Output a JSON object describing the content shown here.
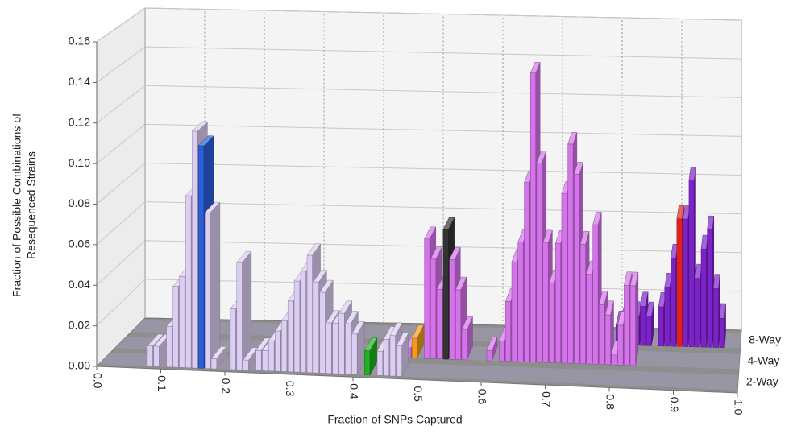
{
  "chart_data": {
    "type": "bar3d",
    "ylabel": [
      "Fraction of Possible Combinations of",
      "Resequenced Strains"
    ],
    "xlabel": "Fraction of SNPs Captured",
    "xlim": [
      0,
      1
    ],
    "xticks": [
      {
        "value": 0,
        "label": "0.0"
      },
      0.1,
      0.2,
      0.3,
      0.4,
      0.5,
      0.6,
      0.7,
      0.8,
      0.9,
      {
        "value": 1,
        "label": "1.0"
      }
    ],
    "ylim": [
      0,
      0.16
    ],
    "yticks": [
      {
        "value": 0,
        "label": "0.00"
      },
      0.02,
      0.04,
      0.06,
      0.08,
      {
        "value": 0.1,
        "label": "0.10"
      },
      0.12,
      0.14,
      0.16
    ],
    "grid": true,
    "series": [
      {
        "name": "2-Way",
        "color": "#dccdf2",
        "x": [
          0.08,
          0.09,
          0.11,
          0.12,
          0.13,
          0.14,
          0.15,
          0.16,
          0.17,
          0.18,
          0.21,
          0.22,
          0.23,
          0.25,
          0.26,
          0.27,
          0.28,
          0.29,
          0.3,
          0.31,
          0.32,
          0.33,
          0.34,
          0.35,
          0.36,
          0.37,
          0.38,
          0.39,
          0.4,
          0.42,
          0.44,
          0.45,
          0.46,
          0.47
        ],
        "values": [
          0.01,
          0.01,
          0.02,
          0.04,
          0.045,
          0.085,
          0.117,
          0.11,
          0.077,
          0.005,
          0.03,
          0.053,
          0.005,
          0.01,
          0.01,
          0.015,
          0.02,
          0.025,
          0.035,
          0.045,
          0.05,
          0.058,
          0.045,
          0.04,
          0.025,
          0.025,
          0.03,
          0.025,
          0.02,
          0.012,
          0.012,
          0.018,
          0.02,
          0.015
        ],
        "colors": [
          null,
          null,
          null,
          null,
          null,
          null,
          null,
          "#2b5fd9",
          null,
          null,
          null,
          null,
          null,
          null,
          null,
          null,
          null,
          null,
          null,
          null,
          null,
          null,
          null,
          null,
          null,
          null,
          null,
          null,
          null,
          "#22b022",
          null,
          null,
          null,
          null
        ]
      },
      {
        "name": "4-Way",
        "color": "#d473ea",
        "x": [
          0.47,
          0.48,
          0.5,
          0.51,
          0.52,
          0.53,
          0.54,
          0.55,
          0.56,
          0.6,
          0.62,
          0.63,
          0.64,
          0.65,
          0.66,
          0.67,
          0.68,
          0.69,
          0.7,
          0.71,
          0.72,
          0.73,
          0.74,
          0.75,
          0.76,
          0.77,
          0.78,
          0.79,
          0.8,
          0.81,
          0.82,
          0.83
        ],
        "values": [
          0.005,
          0.01,
          0.06,
          0.05,
          0.035,
          0.065,
          0.05,
          0.035,
          0.015,
          0.005,
          0.01,
          0.03,
          0.05,
          0.06,
          0.09,
          0.145,
          0.1,
          0.06,
          0.04,
          0.06,
          0.085,
          0.11,
          0.095,
          0.06,
          0.045,
          0.07,
          0.03,
          0.025,
          0.005,
          0.02,
          0.04,
          0.04
        ],
        "colors": [
          null,
          "#f39a1a",
          null,
          null,
          null,
          "#333333",
          null,
          null,
          null,
          null,
          null,
          null,
          null,
          null,
          null,
          null,
          null,
          null,
          null,
          null,
          null,
          null,
          null,
          null,
          null,
          null,
          null,
          null,
          null,
          null,
          null,
          null
        ]
      },
      {
        "name": "8-Way",
        "color": "#7b22c8",
        "x": [
          0.8,
          0.81,
          0.82,
          0.83,
          0.84,
          0.85,
          0.87,
          0.88,
          0.89,
          0.9,
          0.91,
          0.92,
          0.93,
          0.94,
          0.95,
          0.96,
          0.97
        ],
        "values": [
          0.01,
          0.015,
          0.02,
          0.015,
          0.02,
          0.015,
          0.02,
          0.03,
          0.045,
          0.065,
          0.065,
          0.085,
          0.035,
          0.05,
          0.06,
          0.03,
          0.015
        ],
        "colors": [
          null,
          null,
          null,
          null,
          null,
          null,
          null,
          null,
          null,
          "#e02020",
          null,
          null,
          null,
          null,
          null,
          null,
          null
        ]
      }
    ]
  }
}
